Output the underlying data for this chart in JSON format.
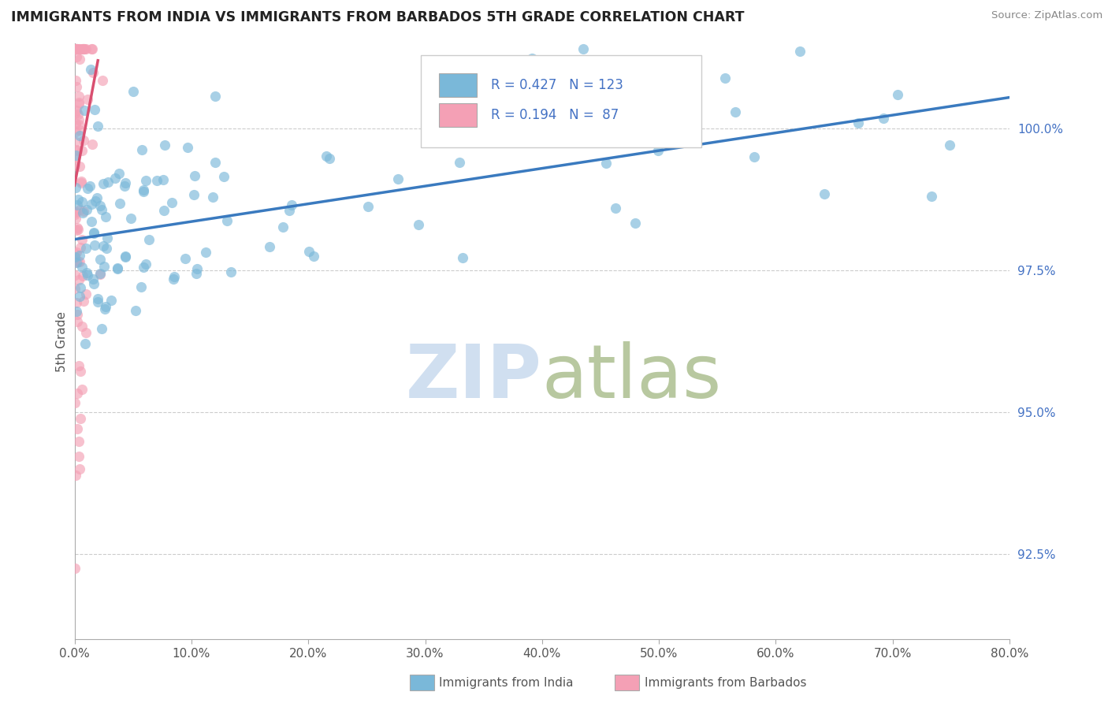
{
  "title": "IMMIGRANTS FROM INDIA VS IMMIGRANTS FROM BARBADOS 5TH GRADE CORRELATION CHART",
  "source": "Source: ZipAtlas.com",
  "ylabel": "5th Grade",
  "x_min": 0.0,
  "x_max": 80.0,
  "y_min": 91.0,
  "y_max": 101.5,
  "y_ticks": [
    92.5,
    95.0,
    97.5,
    100.0
  ],
  "x_ticks": [
    0.0,
    10.0,
    20.0,
    30.0,
    40.0,
    50.0,
    60.0,
    70.0,
    80.0
  ],
  "legend_R_india": "0.427",
  "legend_N_india": "123",
  "legend_R_barbados": "0.194",
  "legend_N_barbados": " 87",
  "legend_label_india": "Immigrants from India",
  "legend_label_barbados": "Immigrants from Barbados",
  "color_india": "#7ab8d9",
  "color_barbados": "#f4a0b5",
  "trendline_india": "#3a7abf",
  "trendline_barbados": "#d94f70",
  "watermark_color": "#d0dff0",
  "background_color": "#ffffff",
  "india_trendline_x0": 0.0,
  "india_trendline_y0": 98.05,
  "india_trendline_x1": 80.0,
  "india_trendline_y1": 100.55,
  "barb_trendline_x0": 0.0,
  "barb_trendline_y0": 99.0,
  "barb_trendline_x1": 2.0,
  "barb_trendline_y1": 101.2
}
